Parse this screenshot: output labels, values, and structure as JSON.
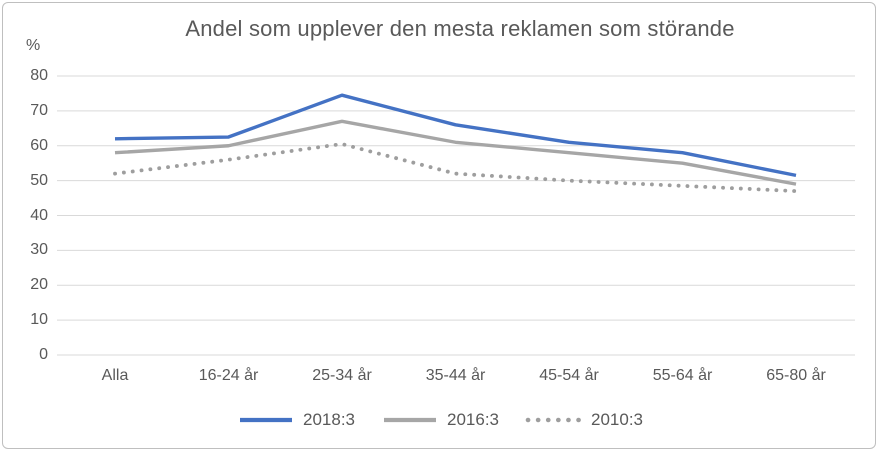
{
  "chart_data": {
    "type": "line",
    "title": "Andel som upplever den mesta reklamen som störande",
    "ylabel": "%",
    "xlabel": "",
    "ylim": [
      0,
      80
    ],
    "grid": true,
    "legend_position": "bottom",
    "yticks": [
      80,
      70,
      60,
      50,
      40,
      30,
      20,
      10,
      0
    ],
    "categories": [
      "Alla",
      "16-24 år",
      "25-34 år",
      "35-44 år",
      "45-54 år",
      "55-64 år",
      "65-80 år"
    ],
    "series": [
      {
        "name": "2018:3",
        "values": [
          62,
          62.5,
          74.5,
          66,
          61,
          58,
          51.5
        ],
        "color": "#4472C4",
        "style": "solid"
      },
      {
        "name": "2016:3",
        "values": [
          58,
          60,
          67,
          61,
          58,
          55,
          49
        ],
        "color": "#A6A6A6",
        "style": "solid"
      },
      {
        "name": "2010:3",
        "values": [
          52,
          56,
          60.5,
          52,
          50,
          48.5,
          47
        ],
        "color": "#9E9E9E",
        "style": "dotted"
      }
    ],
    "colors": {
      "gridline": "#D9D9D9",
      "text": "#595959",
      "frame_border": "#BFBFBF",
      "background": "#FFFFFF"
    }
  }
}
